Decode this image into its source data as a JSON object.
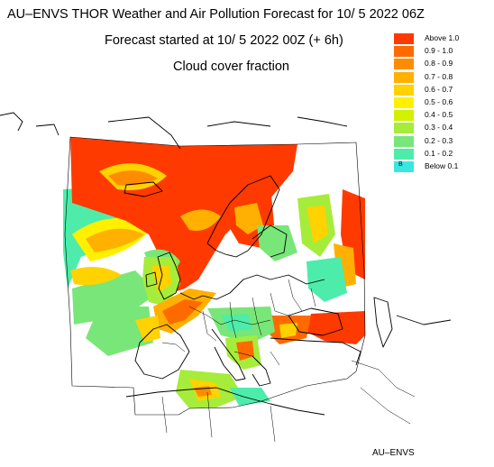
{
  "header": {
    "title": "AU–ENVS THOR Weather and Air Pollution Forecast for 10/ 5 2022  06Z",
    "subtitle": "Forecast started at 10/ 5 2022  00Z (+ 6h)",
    "variable": "Cloud cover fraction"
  },
  "legend": {
    "entries": [
      {
        "label": "Above   1.0",
        "color": "#ff3a00"
      },
      {
        "label": "0.9 -  1.0",
        "color": "#ff6a00"
      },
      {
        "label": "0.8 -  0.9",
        "color": "#ff8c00"
      },
      {
        "label": "0.7 -  0.8",
        "color": "#ffb000"
      },
      {
        "label": "0.6 -  0.7",
        "color": "#ffd200"
      },
      {
        "label": "0.5 -  0.6",
        "color": "#fff000"
      },
      {
        "label": "0.4 -  0.5",
        "color": "#d2f000"
      },
      {
        "label": "0.3 -  0.4",
        "color": "#a6ec3a"
      },
      {
        "label": "0.2 -  0.3",
        "color": "#78e678"
      },
      {
        "label": "0.1 -  0.2",
        "color": "#4eecaa"
      },
      {
        "label": "Below   0.1",
        "color": "#38e8e0",
        "marker": "B"
      }
    ]
  },
  "credit": "AU–ENVS"
}
